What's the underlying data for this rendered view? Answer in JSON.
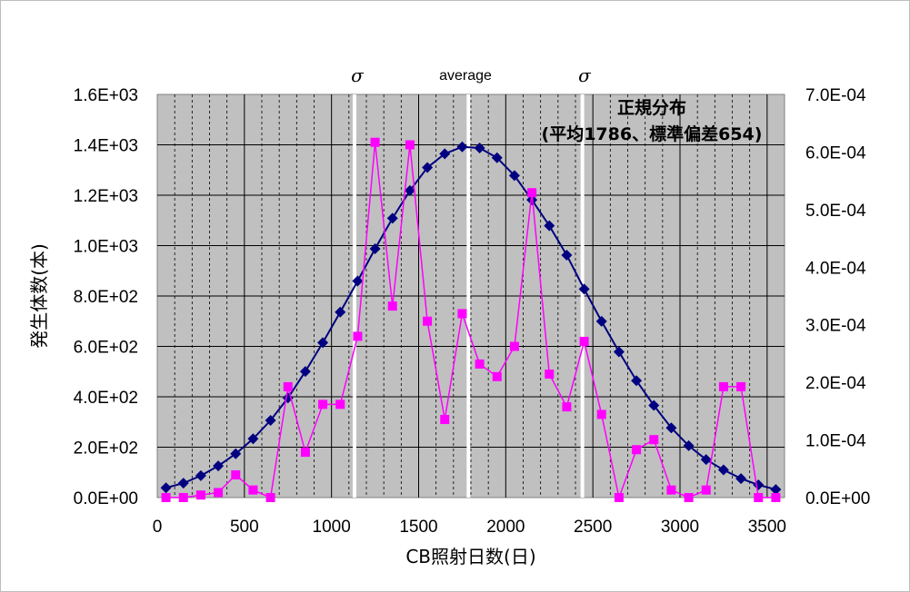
{
  "chart_data": {
    "type": "line",
    "xlabel": "CB照射日数(日)",
    "ylabel": "発生体数(本)",
    "xlim": [
      0,
      3600
    ],
    "ylim_left": [
      0,
      1600
    ],
    "ylim_right": [
      0,
      0.0007
    ],
    "x_ticks": [
      "0",
      "500",
      "1000",
      "1500",
      "2000",
      "2500",
      "3000",
      "3500"
    ],
    "y_left_ticks": [
      "0.0E+00",
      "2.0E+02",
      "4.0E+02",
      "6.0E+02",
      "8.0E+02",
      "1.0E+03",
      "1.2E+03",
      "1.4E+03",
      "1.6E+03"
    ],
    "y_right_ticks": [
      "0.0E+00",
      "1.0E-04",
      "2.0E-04",
      "3.0E-04",
      "4.0E-04",
      "5.0E-04",
      "6.0E-04",
      "7.0E-04"
    ],
    "grid": true,
    "background": "#c0c0c0",
    "annotations": {
      "sigma_left": "σ",
      "average": "average",
      "sigma_right": "σ",
      "normal_line1": "正規分布",
      "normal_line2": "(平均1786、標準偏差654)"
    },
    "vertical_markers": [
      1132,
      1786,
      2440
    ],
    "series": [
      {
        "axis": "left",
        "color": "#ff00ff",
        "marker": "square",
        "x": [
          50,
          150,
          250,
          350,
          450,
          550,
          650,
          750,
          850,
          950,
          1050,
          1150,
          1250,
          1350,
          1450,
          1550,
          1650,
          1750,
          1850,
          1950,
          2050,
          2150,
          2250,
          2350,
          2450,
          2550,
          2650,
          2750,
          2850,
          2950,
          3050,
          3150,
          3250,
          3350,
          3450,
          3550
        ],
        "y": [
          0,
          0,
          10,
          20,
          90,
          30,
          0,
          440,
          180,
          370,
          370,
          640,
          1410,
          760,
          1400,
          700,
          310,
          730,
          530,
          480,
          600,
          1210,
          490,
          360,
          620,
          330,
          0,
          190,
          230,
          30,
          0,
          30,
          440,
          440,
          0,
          0
        ]
      },
      {
        "axis": "right",
        "color": "#000080",
        "marker": "diamond",
        "x": [
          50,
          150,
          250,
          350,
          450,
          550,
          650,
          750,
          850,
          950,
          1050,
          1150,
          1250,
          1350,
          1450,
          1550,
          1650,
          1750,
          1850,
          1950,
          2050,
          2150,
          2250,
          2350,
          2450,
          2550,
          2650,
          2750,
          2850,
          2950,
          3050,
          3150,
          3250,
          3350,
          3450,
          3550
        ],
        "y": [
          1.7e-05,
          2.5e-05,
          3.8e-05,
          5.5e-05,
          7.6e-05,
          0.000102,
          0.000134,
          0.000173,
          0.000219,
          0.000269,
          0.000322,
          0.000376,
          0.000432,
          0.000485,
          0.000533,
          0.000573,
          0.000597,
          0.000609,
          0.000607,
          0.00059,
          0.000559,
          0.000517,
          0.000472,
          0.000421,
          0.000362,
          0.000306,
          0.000253,
          0.000203,
          0.00016,
          0.000121,
          9e-05,
          6.6e-05,
          4.8e-05,
          3.3e-05,
          2.2e-05,
          1.4e-05
        ]
      }
    ]
  }
}
